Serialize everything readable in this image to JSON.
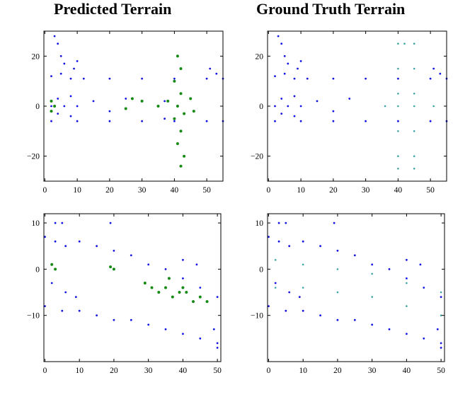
{
  "column_titles": [
    "Predicted Terrain",
    "Ground Truth Terrain"
  ],
  "colors": {
    "non_terrain": "#1414e6",
    "predicted_terrain": "#158a15",
    "ground_truth_terrain": "#3aa3a3",
    "axis": "#000000"
  },
  "chart_data": [
    {
      "id": "top-left",
      "type": "scatter",
      "title": "",
      "xlabel": "",
      "ylabel": "",
      "xlim": [
        -0.3,
        55
      ],
      "ylim": [
        -30,
        30
      ],
      "xticks": [
        0,
        10,
        20,
        30,
        40,
        50
      ],
      "yticks": [
        -20,
        0,
        20
      ],
      "series": [
        {
          "role": "non_terrain",
          "color": "#1414e6",
          "points": [
            [
              2,
              12
            ],
            [
              5,
              13
            ],
            [
              8,
              11
            ],
            [
              12,
              11
            ],
            [
              20,
              11
            ],
            [
              30,
              11
            ],
            [
              40,
              11
            ],
            [
              50,
              11
            ],
            [
              55,
              11
            ],
            [
              2,
              -6
            ],
            [
              10,
              -6
            ],
            [
              20,
              -6
            ],
            [
              30,
              -6
            ],
            [
              40,
              -6
            ],
            [
              50,
              -6
            ],
            [
              55,
              -6
            ],
            [
              2,
              0
            ],
            [
              4,
              3
            ],
            [
              4,
              -3
            ],
            [
              6,
              0
            ],
            [
              8,
              4
            ],
            [
              8,
              -4
            ],
            [
              10,
              0
            ],
            [
              15,
              2
            ],
            [
              20,
              -2
            ],
            [
              25,
              3
            ],
            [
              3,
              28
            ],
            [
              4,
              25
            ],
            [
              5,
              20
            ],
            [
              6,
              17
            ],
            [
              9,
              15
            ],
            [
              10,
              18
            ],
            [
              53,
              13
            ],
            [
              51,
              15
            ],
            [
              37,
              2
            ],
            [
              37,
              -5
            ]
          ]
        },
        {
          "role": "predicted_terrain",
          "color": "#158a15",
          "points": [
            [
              41,
              20
            ],
            [
              42,
              15
            ],
            [
              40,
              10
            ],
            [
              42,
              5
            ],
            [
              41,
              0
            ],
            [
              43,
              -3
            ],
            [
              40,
              -5
            ],
            [
              42,
              -10
            ],
            [
              41,
              -15
            ],
            [
              43,
              -20
            ],
            [
              42,
              -24
            ],
            [
              38,
              2
            ],
            [
              45,
              3
            ],
            [
              46,
              -2
            ],
            [
              35,
              0
            ],
            [
              30,
              2
            ],
            [
              27,
              3
            ],
            [
              25,
              -1
            ],
            [
              3,
              0
            ],
            [
              2,
              2
            ],
            [
              2,
              -2
            ]
          ]
        }
      ]
    },
    {
      "id": "top-right",
      "type": "scatter",
      "title": "",
      "xlabel": "",
      "ylabel": "",
      "xlim": [
        -0.3,
        55
      ],
      "ylim": [
        -30,
        30
      ],
      "xticks": [
        0,
        10,
        20,
        30,
        40,
        50
      ],
      "yticks": [
        -20,
        0,
        20
      ],
      "series": [
        {
          "role": "non_terrain",
          "color": "#1414e6",
          "points": [
            [
              2,
              12
            ],
            [
              5,
              13
            ],
            [
              8,
              11
            ],
            [
              12,
              11
            ],
            [
              20,
              11
            ],
            [
              30,
              11
            ],
            [
              40,
              11
            ],
            [
              50,
              11
            ],
            [
              55,
              11
            ],
            [
              2,
              -6
            ],
            [
              10,
              -6
            ],
            [
              20,
              -6
            ],
            [
              30,
              -6
            ],
            [
              40,
              -6
            ],
            [
              50,
              -6
            ],
            [
              55,
              -6
            ],
            [
              2,
              0
            ],
            [
              4,
              3
            ],
            [
              4,
              -3
            ],
            [
              6,
              0
            ],
            [
              8,
              4
            ],
            [
              8,
              -4
            ],
            [
              10,
              0
            ],
            [
              15,
              2
            ],
            [
              20,
              -2
            ],
            [
              25,
              3
            ],
            [
              3,
              28
            ],
            [
              4,
              25
            ],
            [
              5,
              20
            ],
            [
              6,
              17
            ],
            [
              9,
              15
            ],
            [
              10,
              18
            ],
            [
              53,
              13
            ],
            [
              51,
              15
            ]
          ]
        },
        {
          "role": "ground_truth_terrain",
          "color": "#3aa3a3",
          "points": [
            [
              40,
              25
            ],
            [
              42,
              25
            ],
            [
              45,
              25
            ],
            [
              40,
              15
            ],
            [
              45,
              15
            ],
            [
              40,
              5
            ],
            [
              45,
              5
            ],
            [
              36,
              0
            ],
            [
              40,
              0
            ],
            [
              45,
              0
            ],
            [
              51,
              0
            ],
            [
              40,
              -10
            ],
            [
              45,
              -10
            ],
            [
              40,
              -20
            ],
            [
              45,
              -20
            ],
            [
              40,
              -25
            ],
            [
              45,
              -25
            ]
          ]
        }
      ]
    },
    {
      "id": "bottom-left",
      "type": "scatter",
      "title": "",
      "xlabel": "",
      "ylabel": "",
      "xlim": [
        -0.3,
        51
      ],
      "ylim": [
        -20,
        12
      ],
      "xticks": [
        0,
        10,
        20,
        30,
        40,
        50
      ],
      "yticks": [
        -10,
        0,
        10
      ],
      "series": [
        {
          "role": "non_terrain",
          "color": "#1414e6",
          "points": [
            [
              0,
              7
            ],
            [
              3,
              6
            ],
            [
              6,
              5
            ],
            [
              10,
              6
            ],
            [
              15,
              5
            ],
            [
              20,
              4
            ],
            [
              25,
              3
            ],
            [
              30,
              1
            ],
            [
              35,
              0
            ],
            [
              40,
              -2
            ],
            [
              45,
              -4
            ],
            [
              50,
              -6
            ],
            [
              0,
              -8
            ],
            [
              5,
              -9
            ],
            [
              10,
              -9
            ],
            [
              15,
              -10
            ],
            [
              20,
              -11
            ],
            [
              25,
              -11
            ],
            [
              30,
              -12
            ],
            [
              35,
              -13
            ],
            [
              40,
              -14
            ],
            [
              45,
              -15
            ],
            [
              50,
              -16
            ],
            [
              3,
              10
            ],
            [
              5,
              10
            ],
            [
              19,
              10
            ],
            [
              2,
              -3
            ],
            [
              6,
              -5
            ],
            [
              9,
              -6
            ],
            [
              40,
              2
            ],
            [
              44,
              1
            ],
            [
              49,
              -13
            ],
            [
              50,
              -17
            ]
          ]
        },
        {
          "role": "predicted_terrain",
          "color": "#158a15",
          "points": [
            [
              20,
              0
            ],
            [
              19,
              0.5
            ],
            [
              29,
              -3
            ],
            [
              31,
              -4
            ],
            [
              33,
              -5
            ],
            [
              35,
              -4
            ],
            [
              37,
              -6
            ],
            [
              39,
              -5
            ],
            [
              41,
              -5
            ],
            [
              43,
              -7
            ],
            [
              45,
              -6
            ],
            [
              47,
              -7
            ],
            [
              36,
              -2
            ],
            [
              40,
              -4
            ],
            [
              2,
              1
            ],
            [
              3,
              0
            ]
          ]
        }
      ]
    },
    {
      "id": "bottom-right",
      "type": "scatter",
      "title": "",
      "xlabel": "",
      "ylabel": "",
      "xlim": [
        -0.3,
        51
      ],
      "ylim": [
        -20,
        12
      ],
      "xticks": [
        0,
        10,
        20,
        30,
        40,
        50
      ],
      "yticks": [
        -10,
        0,
        10
      ],
      "series": [
        {
          "role": "non_terrain",
          "color": "#1414e6",
          "points": [
            [
              0,
              7
            ],
            [
              3,
              6
            ],
            [
              6,
              5
            ],
            [
              10,
              6
            ],
            [
              15,
              5
            ],
            [
              20,
              4
            ],
            [
              25,
              3
            ],
            [
              30,
              1
            ],
            [
              35,
              0
            ],
            [
              40,
              -2
            ],
            [
              45,
              -4
            ],
            [
              50,
              -6
            ],
            [
              0,
              -8
            ],
            [
              5,
              -9
            ],
            [
              10,
              -9
            ],
            [
              15,
              -10
            ],
            [
              20,
              -11
            ],
            [
              25,
              -11
            ],
            [
              30,
              -12
            ],
            [
              35,
              -13
            ],
            [
              40,
              -14
            ],
            [
              45,
              -15
            ],
            [
              50,
              -16
            ],
            [
              3,
              10
            ],
            [
              5,
              10
            ],
            [
              19,
              10
            ],
            [
              2,
              -3
            ],
            [
              6,
              -5
            ],
            [
              9,
              -6
            ],
            [
              40,
              2
            ],
            [
              44,
              1
            ],
            [
              49,
              -13
            ],
            [
              50,
              -17
            ]
          ]
        },
        {
          "role": "ground_truth_terrain",
          "color": "#3aa3a3",
          "points": [
            [
              2,
              2
            ],
            [
              10,
              1
            ],
            [
              20,
              0
            ],
            [
              30,
              -1
            ],
            [
              40,
              -3
            ],
            [
              50,
              -5
            ],
            [
              2,
              -4
            ],
            [
              10,
              -4
            ],
            [
              20,
              -5
            ],
            [
              30,
              -6
            ],
            [
              40,
              -8
            ],
            [
              50,
              -10
            ]
          ]
        }
      ]
    }
  ]
}
